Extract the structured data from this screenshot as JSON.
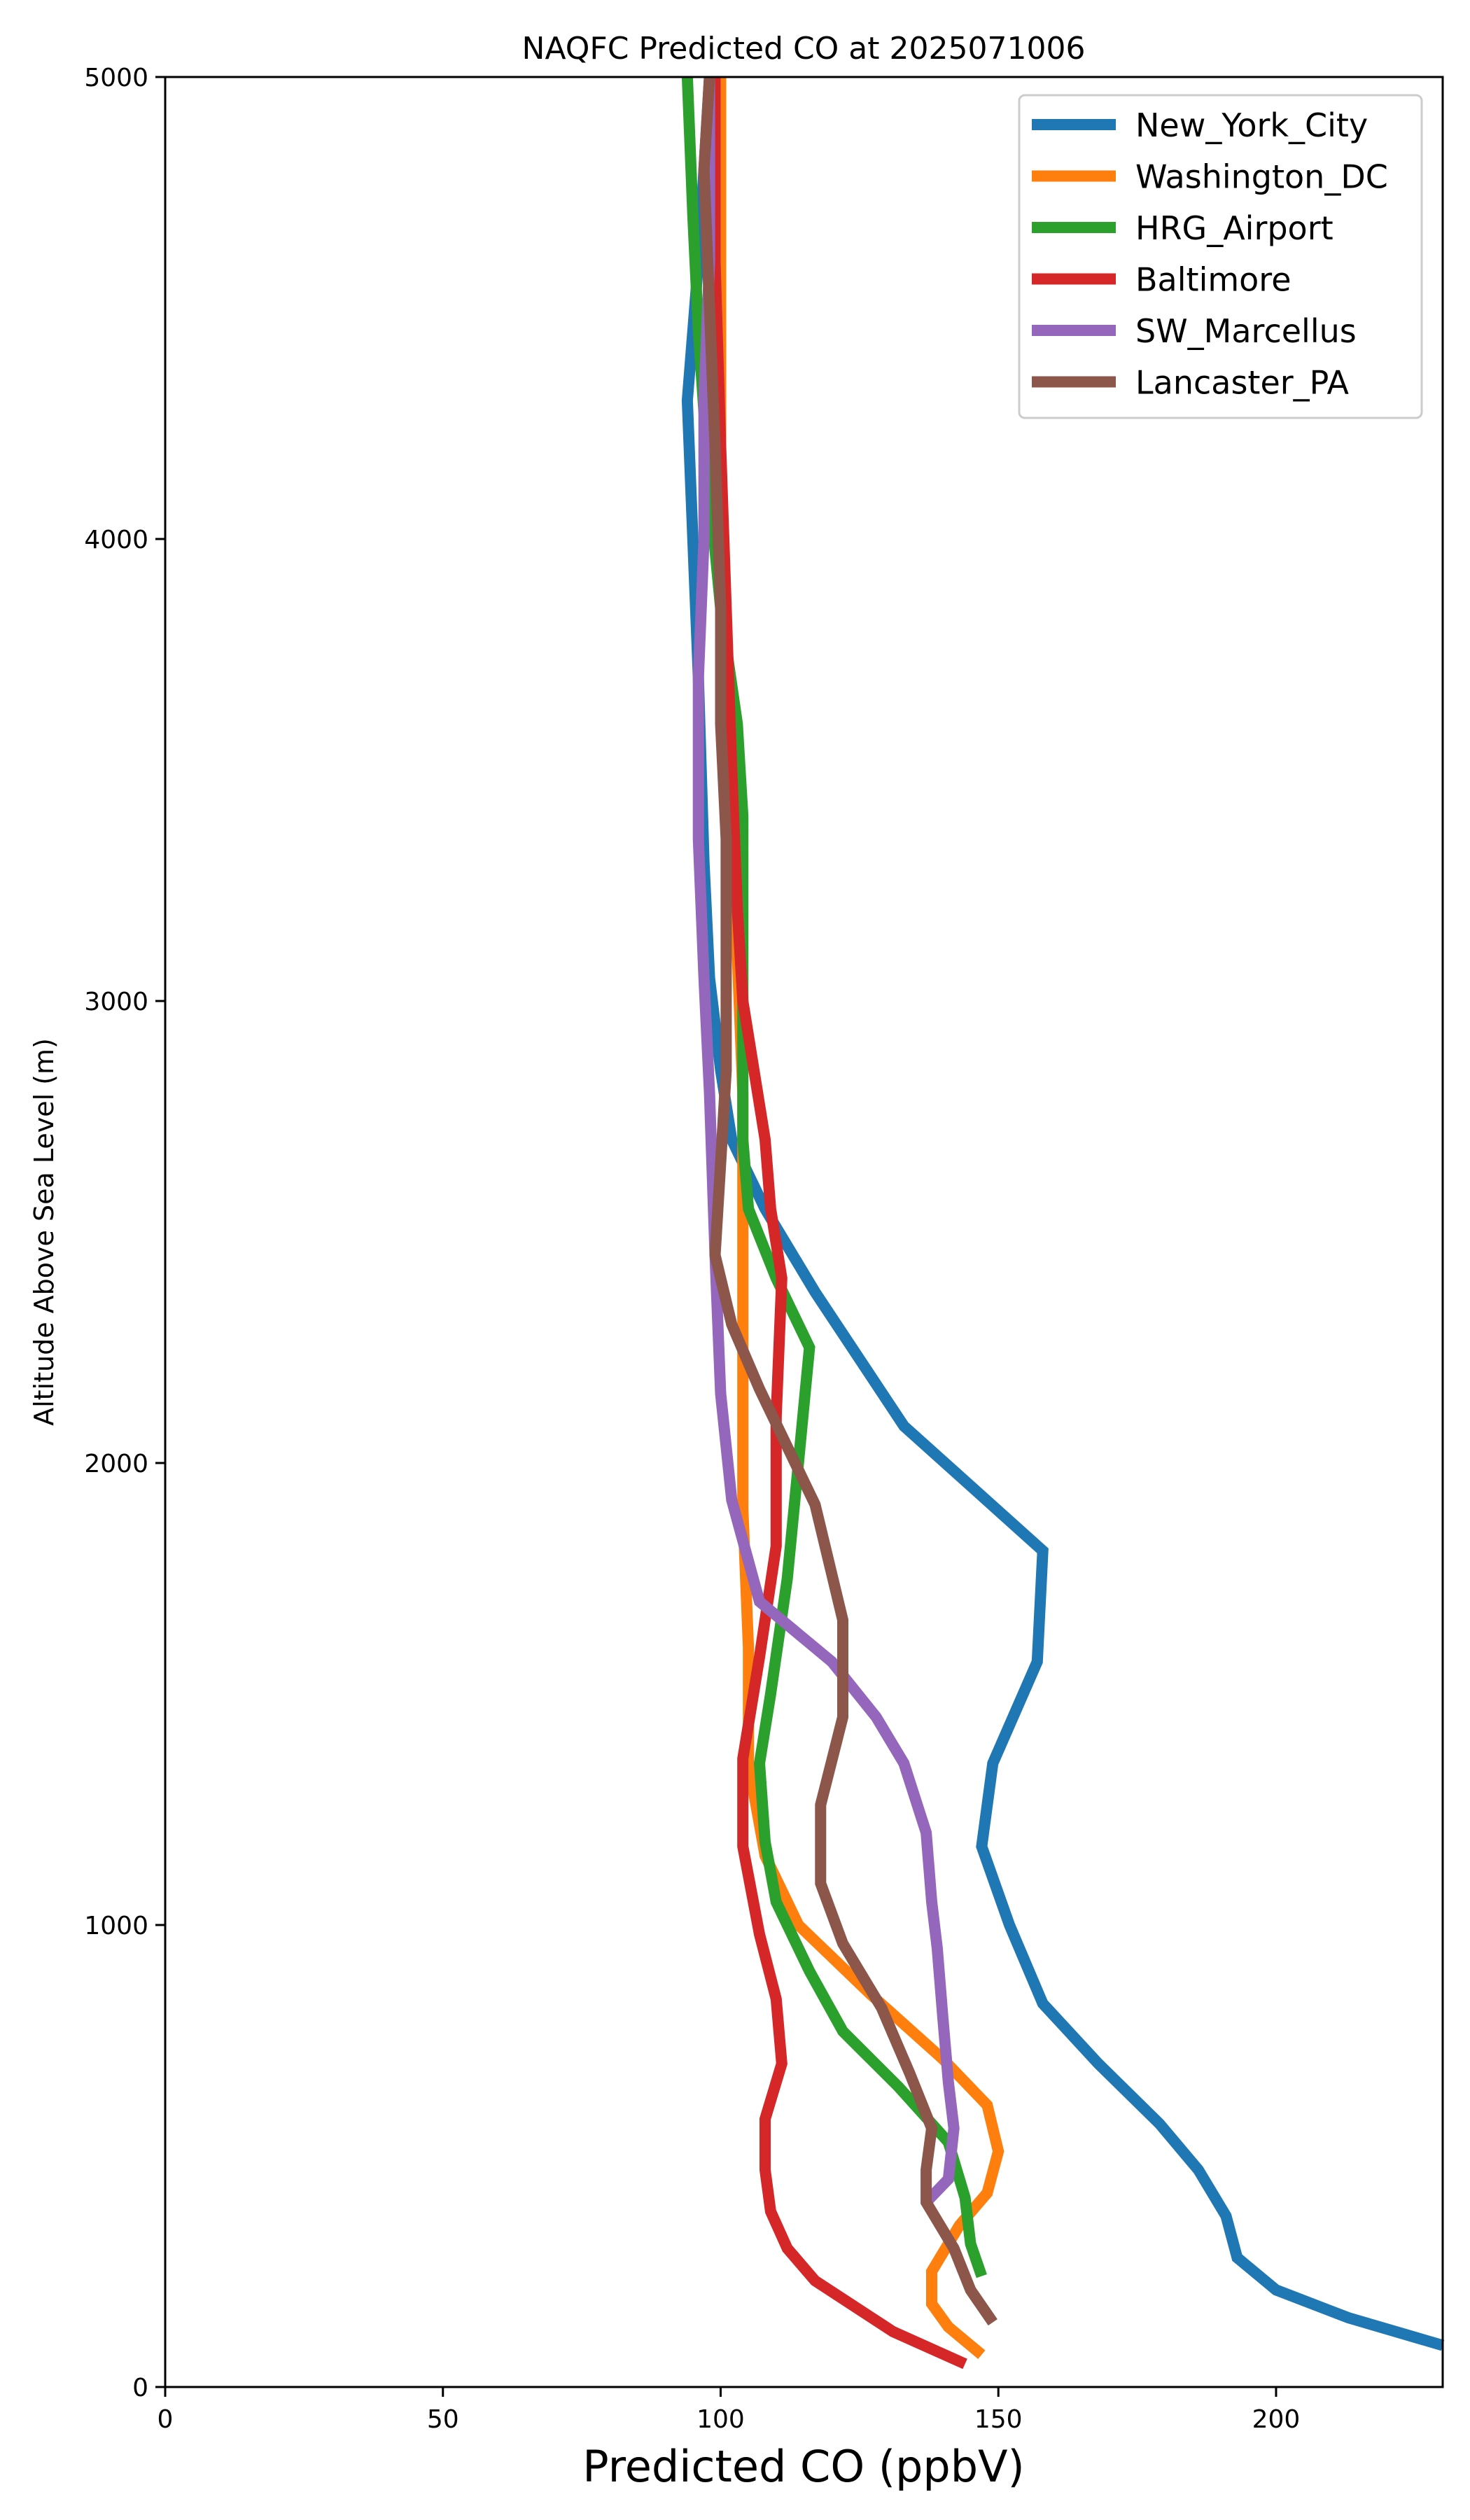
{
  "chart_data": {
    "type": "line",
    "title": "NAQFC Predicted CO at 2025071006",
    "xlabel": "Predicted CO (ppbV)",
    "ylabel": "Altitude Above Sea Level (m)",
    "xlim": [
      0,
      230
    ],
    "ylim": [
      0,
      5000
    ],
    "xticks": [
      0,
      50,
      100,
      150,
      200
    ],
    "yticks": [
      0,
      1000,
      2000,
      3000,
      4000,
      5000
    ],
    "grid": false,
    "legend_position": "top-right",
    "series": [
      {
        "name": "New_York_City",
        "color": "#1f77b4",
        "points": [
          [
            230,
            90
          ],
          [
            213,
            150
          ],
          [
            200,
            210
          ],
          [
            193,
            280
          ],
          [
            191,
            370
          ],
          [
            186,
            470
          ],
          [
            179,
            570
          ],
          [
            168,
            700
          ],
          [
            158,
            830
          ],
          [
            152,
            1000
          ],
          [
            147,
            1170
          ],
          [
            149,
            1350
          ],
          [
            157,
            1570
          ],
          [
            158,
            1810
          ],
          [
            133,
            2080
          ],
          [
            117,
            2370
          ],
          [
            108,
            2550
          ],
          [
            102,
            2700
          ],
          [
            100,
            2850
          ],
          [
            98,
            3050
          ],
          [
            97,
            3300
          ],
          [
            96,
            3700
          ],
          [
            95,
            4000
          ],
          [
            94,
            4300
          ],
          [
            96,
            4600
          ],
          [
            97,
            4800
          ],
          [
            98,
            5000
          ]
        ]
      },
      {
        "name": "Washington_DC",
        "color": "#ff7f0e",
        "points": [
          [
            147,
            70
          ],
          [
            141,
            130
          ],
          [
            138,
            180
          ],
          [
            138,
            250
          ],
          [
            143,
            350
          ],
          [
            148,
            420
          ],
          [
            150,
            510
          ],
          [
            148,
            610
          ],
          [
            140,
            710
          ],
          [
            127,
            850
          ],
          [
            114,
            1000
          ],
          [
            108,
            1150
          ],
          [
            105,
            1350
          ],
          [
            105,
            1600
          ],
          [
            104,
            1900
          ],
          [
            104,
            2200
          ],
          [
            104,
            2500
          ],
          [
            104,
            2800
          ],
          [
            103,
            3100
          ],
          [
            102,
            3400
          ],
          [
            101,
            3700
          ],
          [
            100,
            4000
          ],
          [
            100,
            4300
          ],
          [
            100,
            4600
          ],
          [
            100,
            4800
          ],
          [
            100,
            5000
          ]
        ]
      },
      {
        "name": "HRG_Airport",
        "color": "#2ca02c",
        "points": [
          [
            147,
            240
          ],
          [
            145,
            310
          ],
          [
            144,
            410
          ],
          [
            141,
            530
          ],
          [
            132,
            650
          ],
          [
            122,
            770
          ],
          [
            116,
            900
          ],
          [
            110,
            1050
          ],
          [
            108,
            1180
          ],
          [
            107,
            1350
          ],
          [
            109,
            1500
          ],
          [
            112,
            1750
          ],
          [
            114,
            2000
          ],
          [
            116,
            2250
          ],
          [
            110,
            2400
          ],
          [
            105,
            2550
          ],
          [
            104,
            2700
          ],
          [
            104,
            2900
          ],
          [
            104,
            3200
          ],
          [
            104,
            3400
          ],
          [
            103,
            3600
          ],
          [
            100,
            3850
          ],
          [
            98,
            4100
          ],
          [
            96,
            4450
          ],
          [
            95,
            4700
          ],
          [
            94,
            5000
          ]
        ]
      },
      {
        "name": "Baltimore",
        "color": "#d62728",
        "points": [
          [
            144,
            50
          ],
          [
            131,
            120
          ],
          [
            117,
            230
          ],
          [
            112,
            300
          ],
          [
            109,
            380
          ],
          [
            108,
            470
          ],
          [
            108,
            580
          ],
          [
            111,
            700
          ],
          [
            110,
            840
          ],
          [
            107,
            980
          ],
          [
            104,
            1170
          ],
          [
            104,
            1360
          ],
          [
            107,
            1580
          ],
          [
            110,
            1820
          ],
          [
            110,
            2100
          ],
          [
            111,
            2400
          ],
          [
            109,
            2550
          ],
          [
            108,
            2700
          ],
          [
            106,
            2850
          ],
          [
            104,
            3000
          ],
          [
            103,
            3200
          ],
          [
            102,
            3500
          ],
          [
            101,
            3850
          ],
          [
            100,
            4200
          ],
          [
            99,
            4600
          ],
          [
            99,
            5000
          ]
        ]
      },
      {
        "name": "SW_Marcellus",
        "color": "#9467bd",
        "points": [
          [
            137,
            400
          ],
          [
            141,
            450
          ],
          [
            142,
            560
          ],
          [
            141,
            660
          ],
          [
            140,
            800
          ],
          [
            139,
            950
          ],
          [
            138,
            1050
          ],
          [
            137,
            1200
          ],
          [
            133,
            1350
          ],
          [
            128,
            1450
          ],
          [
            120,
            1570
          ],
          [
            107,
            1700
          ],
          [
            102,
            1920
          ],
          [
            100,
            2150
          ],
          [
            99,
            2450
          ],
          [
            98,
            2800
          ],
          [
            97,
            3050
          ],
          [
            96,
            3350
          ],
          [
            96,
            3700
          ],
          [
            97,
            4000
          ],
          [
            97,
            4300
          ],
          [
            98,
            4600
          ],
          [
            98,
            4800
          ],
          [
            98,
            5000
          ]
        ]
      },
      {
        "name": "Lancaster_PA",
        "color": "#8c564b",
        "points": [
          [
            149,
            140
          ],
          [
            145,
            210
          ],
          [
            142,
            300
          ],
          [
            137,
            400
          ],
          [
            137,
            470
          ],
          [
            138,
            560
          ],
          [
            134,
            680
          ],
          [
            129,
            820
          ],
          [
            122,
            960
          ],
          [
            118,
            1090
          ],
          [
            118,
            1260
          ],
          [
            122,
            1450
          ],
          [
            122,
            1660
          ],
          [
            117,
            1910
          ],
          [
            107,
            2160
          ],
          [
            102,
            2300
          ],
          [
            99,
            2450
          ],
          [
            100,
            2650
          ],
          [
            101,
            2850
          ],
          [
            101,
            3050
          ],
          [
            101,
            3350
          ],
          [
            100,
            3600
          ],
          [
            100,
            3850
          ],
          [
            99,
            4200
          ],
          [
            98,
            4500
          ],
          [
            97,
            4800
          ],
          [
            98,
            5000
          ]
        ]
      }
    ]
  }
}
